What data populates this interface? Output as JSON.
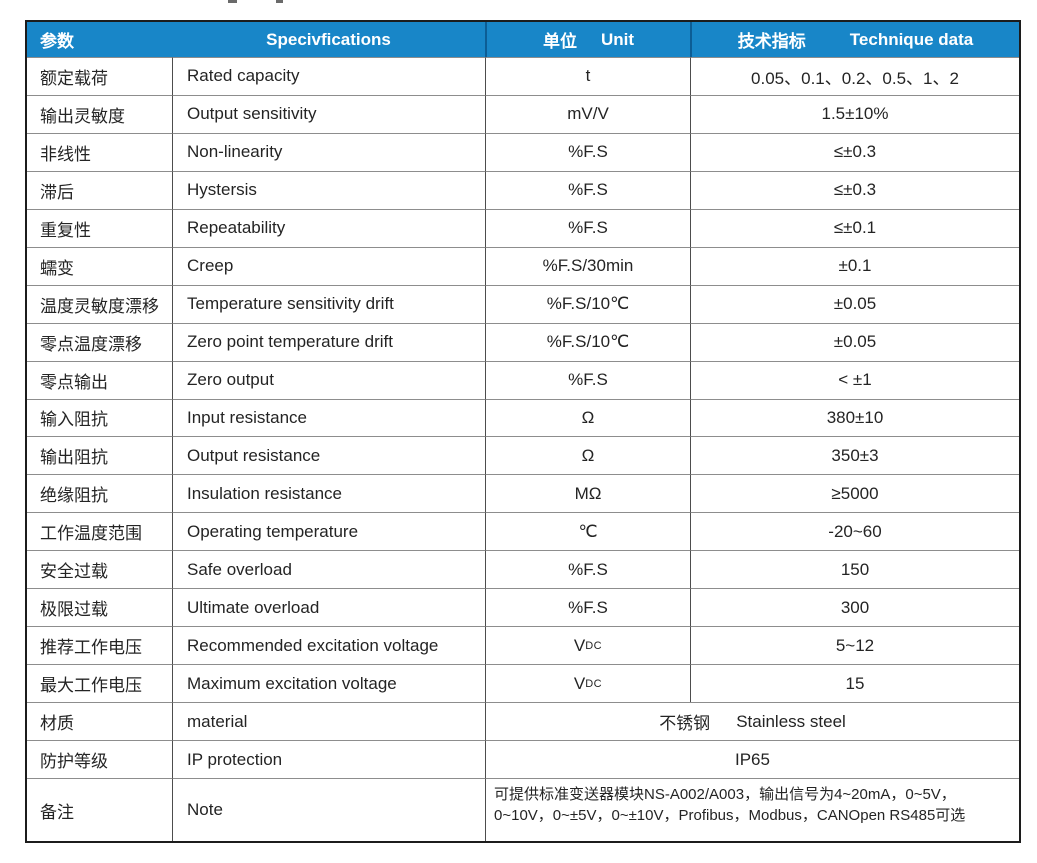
{
  "colors": {
    "header_bg": "#1886c8",
    "header_text": "#ffffff",
    "header_divider": "#0c5d95",
    "row_line": "#8d8d8d",
    "column_line": "#4d4d4d",
    "outer_border": "#1c1c1c",
    "body_text": "#242424"
  },
  "table": {
    "header": {
      "param_cn": "参数",
      "spec_en": "Specivfications",
      "unit_cn": "单位",
      "unit_en": "Unit",
      "tech_cn": "技术指标",
      "tech_en": "Technique data"
    },
    "rows": [
      {
        "type": "normal",
        "cn": "额定载荷",
        "en": "Rated capacity",
        "unit": "t",
        "value": "0.05、0.1、0.2、0.5、1、2"
      },
      {
        "type": "normal",
        "cn": "输出灵敏度",
        "en": "Output sensitivity",
        "unit": "mV/V",
        "value": "1.5±10%"
      },
      {
        "type": "normal",
        "cn": "非线性",
        "en": "Non-linearity",
        "unit": "%F.S",
        "value": "≤±0.3"
      },
      {
        "type": "normal",
        "cn": "滞后",
        "en": "Hystersis",
        "unit": "%F.S",
        "value": "≤±0.3"
      },
      {
        "type": "normal",
        "cn": "重复性",
        "en": "Repeatability",
        "unit": "%F.S",
        "value": "≤±0.1"
      },
      {
        "type": "normal",
        "cn": "蠕变",
        "en": "Creep",
        "unit": "%F.S/30min",
        "value": "±0.1"
      },
      {
        "type": "normal",
        "cn": "温度灵敏度漂移",
        "en": "Temperature sensitivity drift",
        "unit": "%F.S/10℃",
        "value": "±0.05"
      },
      {
        "type": "normal",
        "cn": "零点温度漂移",
        "en": "Zero point temperature drift",
        "unit": "%F.S/10℃",
        "value": "±0.05"
      },
      {
        "type": "normal",
        "cn": "零点输出",
        "en": "Zero output",
        "unit": "%F.S",
        "value": "< ±1"
      },
      {
        "type": "normal",
        "cn": "输入阻抗",
        "en": "Input resistance",
        "unit": "Ω",
        "value": "380±10"
      },
      {
        "type": "normal",
        "cn": "输出阻抗",
        "en": "Output resistance",
        "unit": "Ω",
        "value": "350±3"
      },
      {
        "type": "normal",
        "cn": "绝缘阻抗",
        "en": "Insulation resistance",
        "unit": "MΩ",
        "value": "≥5000"
      },
      {
        "type": "normal",
        "cn": "工作温度范围",
        "en": "Operating temperature",
        "unit": "℃",
        "value": "-20~60"
      },
      {
        "type": "normal",
        "cn": "安全过载",
        "en": "Safe overload",
        "unit": "%F.S",
        "value": "150"
      },
      {
        "type": "normal",
        "cn": "极限过载",
        "en": "Ultimate overload",
        "unit": "%F.S",
        "value": "300"
      },
      {
        "type": "normal",
        "cn": "推荐工作电压",
        "en": "Recommended excitation voltage",
        "unit": "V",
        "unit_sub": "DC",
        "value": "5~12"
      },
      {
        "type": "normal",
        "cn": "最大工作电压",
        "en": "Maximum excitation voltage",
        "unit": "V",
        "unit_sub": "DC",
        "value": "15"
      },
      {
        "type": "merged",
        "cn": "材质",
        "en": "material",
        "merged_cn": "不锈钢",
        "merged_en": "Stainless steel"
      },
      {
        "type": "merged",
        "cn": "防护等级",
        "en": "IP protection",
        "merged": "IP65"
      },
      {
        "type": "note",
        "cn": "备注",
        "en": "Note",
        "note_lines": [
          "可提供标准变送器模块NS-A002/A003，输出信号为4~20mA，0~5V，",
          "0~10V，0~±5V，0~±10V，Profibus，Modbus，CANOpen RS485可选"
        ]
      }
    ]
  }
}
